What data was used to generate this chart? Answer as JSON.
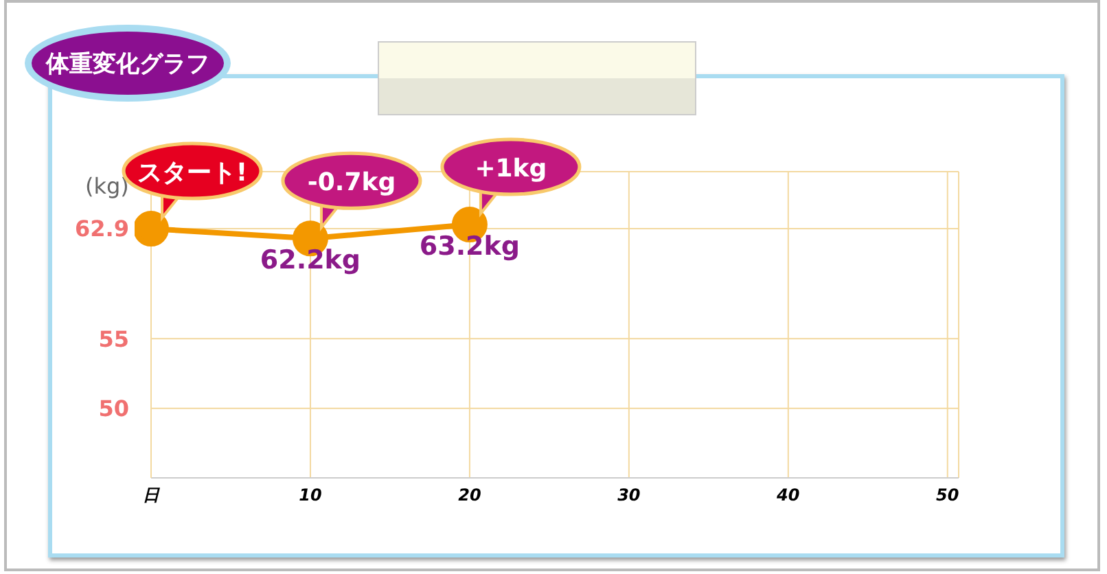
{
  "chart_data": {
    "type": "line",
    "title": "体重変化グラフ",
    "ylabel": "(kg)",
    "x": [
      0,
      10,
      20
    ],
    "series": [
      {
        "color": "#f39800",
        "values": [
          62.9,
          62.2,
          63.2
        ],
        "value_labels": [
          null,
          "62.2kg",
          "63.2kg"
        ]
      }
    ],
    "xlim": [
      0,
      50.7
    ],
    "xticks": [
      {
        "value": 0,
        "label": "日"
      },
      10,
      20,
      30,
      40,
      50
    ],
    "ylim": [
      45,
      67
    ],
    "yticks": [
      50,
      55,
      62.9
    ],
    "annotations": [
      {
        "text": "スタート!",
        "x": 0,
        "y": 62.9
      },
      {
        "text": "-0.7kg",
        "x": 10,
        "y": 62.2
      },
      {
        "text": "+1kg",
        "x": 20,
        "y": 63.2
      }
    ],
    "grid": true,
    "legend": false,
    "marker": "circle",
    "line_style": "solid"
  }
}
